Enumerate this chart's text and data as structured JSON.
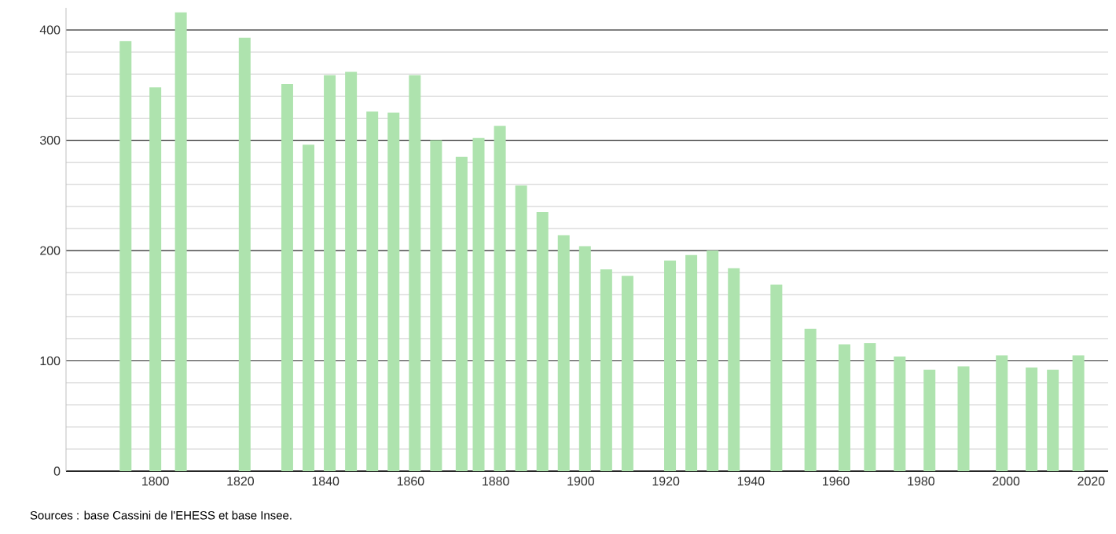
{
  "chart_data": {
    "type": "bar",
    "x": [
      1793,
      1800,
      1806,
      1821,
      1831,
      1836,
      1841,
      1846,
      1851,
      1856,
      1861,
      1866,
      1872,
      1876,
      1881,
      1886,
      1891,
      1896,
      1901,
      1906,
      1911,
      1921,
      1926,
      1931,
      1936,
      1946,
      1954,
      1962,
      1968,
      1975,
      1982,
      1990,
      1999,
      2006,
      2011,
      2017
    ],
    "values": [
      390,
      348,
      416,
      393,
      351,
      296,
      359,
      362,
      326,
      325,
      359,
      300,
      285,
      302,
      313,
      259,
      235,
      214,
      204,
      183,
      177,
      191,
      196,
      200,
      184,
      169,
      129,
      115,
      116,
      104,
      92,
      95,
      105,
      94,
      92,
      105
    ],
    "color": "#aee3ae",
    "xlim": [
      1779,
      2024
    ],
    "ylim": [
      0,
      420
    ],
    "xticks": [
      1800,
      1820,
      1840,
      1860,
      1880,
      1900,
      1920,
      1940,
      1960,
      1980,
      2000,
      2020
    ],
    "yticks": [
      0,
      100,
      200,
      300,
      400
    ],
    "grid": "y",
    "annotations": [
      "Sources : base Cassini de l'EHESS et base Insee."
    ]
  }
}
